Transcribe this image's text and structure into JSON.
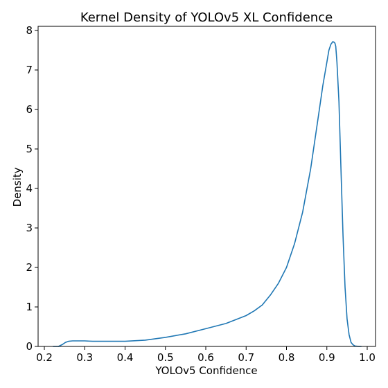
{
  "chart_data": {
    "type": "line",
    "title": "Kernel Density of YOLOv5 XL Confidence",
    "xlabel": "YOLOv5 Confidence",
    "ylabel": "Density",
    "xlim": [
      0.2,
      1.0
    ],
    "ylim": [
      0,
      8
    ],
    "x_ticks": [
      "0.2",
      "0.3",
      "0.4",
      "0.5",
      "0.6",
      "0.7",
      "0.8",
      "0.9",
      "1.0"
    ],
    "y_ticks": [
      "0",
      "1",
      "2",
      "3",
      "4",
      "5",
      "6",
      "7",
      "8"
    ],
    "grid": false,
    "series": [
      {
        "color": "#1f77b4",
        "x": [
          0.222,
          0.235,
          0.245,
          0.252,
          0.26,
          0.27,
          0.28,
          0.3,
          0.32,
          0.35,
          0.4,
          0.45,
          0.5,
          0.55,
          0.6,
          0.65,
          0.7,
          0.72,
          0.74,
          0.76,
          0.78,
          0.8,
          0.82,
          0.84,
          0.86,
          0.88,
          0.89,
          0.9,
          0.905,
          0.91,
          0.915,
          0.918,
          0.92,
          0.922,
          0.925,
          0.93,
          0.935,
          0.94,
          0.945,
          0.95,
          0.955,
          0.96,
          0.965,
          0.97,
          0.98,
          0.985
        ],
        "y": [
          0.0,
          0.0,
          0.05,
          0.1,
          0.13,
          0.14,
          0.14,
          0.14,
          0.13,
          0.13,
          0.13,
          0.16,
          0.23,
          0.32,
          0.45,
          0.58,
          0.78,
          0.9,
          1.05,
          1.3,
          1.6,
          2.0,
          2.6,
          3.4,
          4.5,
          5.9,
          6.6,
          7.2,
          7.5,
          7.65,
          7.72,
          7.7,
          7.68,
          7.6,
          7.2,
          6.2,
          4.5,
          2.8,
          1.5,
          0.7,
          0.3,
          0.1,
          0.04,
          0.01,
          0.0,
          0.0
        ]
      }
    ]
  }
}
